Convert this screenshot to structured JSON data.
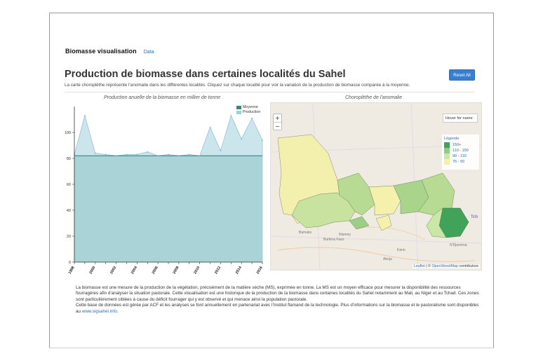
{
  "header": {
    "brand": "Biomasse visualisation",
    "data_link": "Data"
  },
  "page": {
    "title": "Production de biomasse dans certaines localités du Sahel",
    "subtitle": "La carte choroplèthe représente l’anomalie dans les différentes localités. Cliquez sur chaque localité pour voir la variation de la production de biomasse comparée à la moyenne.",
    "reset_label": "Reset All"
  },
  "chart_panel": {
    "title": "Production anuelle de la biomasse en millier de tonne"
  },
  "map_panel": {
    "title": "Choroplèthe de l'anomalie",
    "hover_text": "Hover for name",
    "zoom_in": "+",
    "zoom_out": "−",
    "legend_title": "Légende",
    "legend_items": [
      {
        "label": "150+",
        "color": "#41a35a"
      },
      {
        "label": "110 - 150",
        "color": "#8fcc86"
      },
      {
        "label": "90 - 110",
        "color": "#c9e8a5"
      },
      {
        "label": "75 - 90",
        "color": "#f4f0a8"
      }
    ],
    "attribution": {
      "leaflet": "Leaflet",
      "separator": " | © ",
      "osm": "OpenStreetMap",
      "suffix": " contributors"
    },
    "place_labels": [
      "Burkina Faso",
      "Niamey",
      "Kano",
      "Abuja",
      "N'Djamena",
      "Tch",
      "Bamako"
    ]
  },
  "chart_data": {
    "type": "area",
    "x": [
      1998,
      1999,
      2000,
      2001,
      2002,
      2003,
      2004,
      2005,
      2006,
      2007,
      2008,
      2009,
      2010,
      2011,
      2012,
      2013,
      2014,
      2015,
      2016
    ],
    "x_tick_labels": [
      "1998",
      "2000",
      "2002",
      "2004",
      "2006",
      "2008",
      "2010",
      "2012",
      "2014",
      "2016"
    ],
    "y_ticks": [
      0,
      20,
      40,
      60,
      80,
      100
    ],
    "ylim": [
      0,
      120
    ],
    "xlim": [
      1998,
      2016
    ],
    "legend_position": "top-right",
    "series": [
      {
        "name": "Moyenne",
        "color": "#2f8a84",
        "values": [
          82,
          82,
          82,
          82,
          82,
          82,
          82,
          82,
          82,
          82,
          82,
          82,
          82,
          82,
          82,
          82,
          82,
          82,
          82
        ]
      },
      {
        "name": "Production",
        "color": "#9fcfdc",
        "values": [
          83,
          113,
          84,
          83,
          82,
          83,
          83,
          85,
          82,
          83,
          82,
          83,
          82,
          104,
          86,
          113,
          95,
          111,
          94
        ]
      }
    ]
  },
  "footer": {
    "line1": "La biomasse est une mesure de la production de la végétation, précisément de la matière sèche (MS), exprimée en tonne. La MS est un moyen efficace pour mesurer la disponibilité des ressources fourragères afin d’analyser la situation pastorale. Cette visualisation est une historique de la production de la biomasse dans certaines localités du Sahel notamment au Mali, au Niger et au Tchad. Ces zones sont particulièrement ciblées à cause du déficit fourrager qui y est observé et qui menace ainsi la population pastorale.",
    "line2": "Cette base de données est gérée par ACF et les analyses se font annuellement en partenariat avec l’Institut flamand de la technologie. Plus d’informations sur la biomasse et le pastoralisme sont disponibles au ",
    "link": "www.sigsahel.info",
    "line2_end": "."
  }
}
